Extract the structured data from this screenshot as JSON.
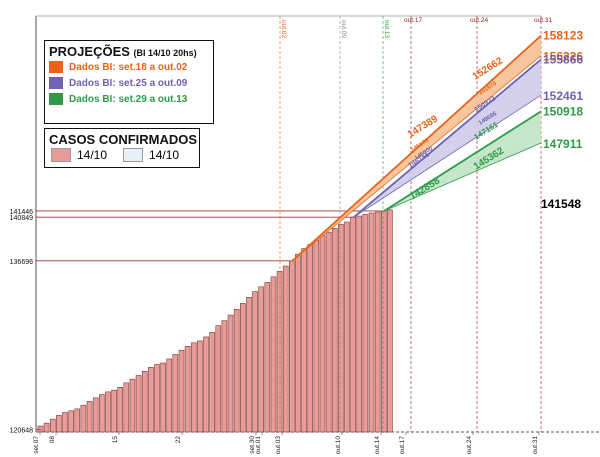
{
  "chart_data": {
    "type": "bar",
    "title": "PROJEÇÕES",
    "subtitle": "(BI 14/10 20hs)",
    "bar_values": [
      120970,
      121240,
      121620,
      121980,
      122260,
      122420,
      122600,
      122950,
      123310,
      123650,
      123960,
      124220,
      124380,
      124650,
      125080,
      125430,
      125780,
      126180,
      126560,
      126830,
      126970,
      127350,
      127780,
      128180,
      128560,
      128890,
      129070,
      129450,
      129880,
      130520,
      131000,
      131530,
      132080,
      132640,
      133220,
      133770,
      134220,
      134640,
      135170,
      135700,
      136200,
      136696,
      137330,
      137860,
      138240,
      138660,
      139080,
      139420,
      139780,
      140180,
      140390,
      140849,
      140960,
      141110,
      141250,
      141340,
      141446,
      141548
    ],
    "y_ticks": [
      "120648",
      "136696",
      "140849",
      "141446"
    ],
    "x_tick_labels": [
      "set.07",
      "08",
      "15",
      "22",
      "set.30",
      "out.01",
      "out.03",
      "out.10",
      "out.14",
      "out.17",
      "out.24",
      "out.31"
    ],
    "top_labels": [
      "out.02",
      "out.09",
      "out.13",
      "out.17",
      "out.24",
      "out.31"
    ],
    "projections": [
      {
        "name": "Dados BI: set.18 a out.02",
        "color": "#e8641b",
        "fill": "#f5c195",
        "start": 136696,
        "upper_end": 158123,
        "lower_end": 156226,
        "inner_labels": [
          "147389",
          "152662",
          "146176",
          "151970"
        ]
      },
      {
        "name": "Dados BI: set.25 a out.09",
        "color": "#6f63b0",
        "fill": "#cfcbea",
        "start": 140849,
        "upper_end": 155866,
        "lower_end": 152461,
        "inner_labels": [
          "146155",
          "150922",
          "145000",
          "149666"
        ]
      },
      {
        "name": "Dados BI: set.29 a out.13",
        "color": "#2f9a48",
        "fill": "#bfe3c4",
        "start": 141446,
        "upper_end": 150918,
        "lower_end": 147911,
        "inner_labels": [
          "142858",
          "145362",
          "147161"
        ]
      }
    ],
    "current_value": "141548",
    "ylim": [
      120400,
      160000
    ]
  },
  "legend": {
    "cases_title": "CASOS CONFIRMADOS",
    "cases_items": [
      "14/10",
      "14/10"
    ],
    "cases_colors": [
      "#e99b97",
      "#e9f0f5"
    ]
  }
}
